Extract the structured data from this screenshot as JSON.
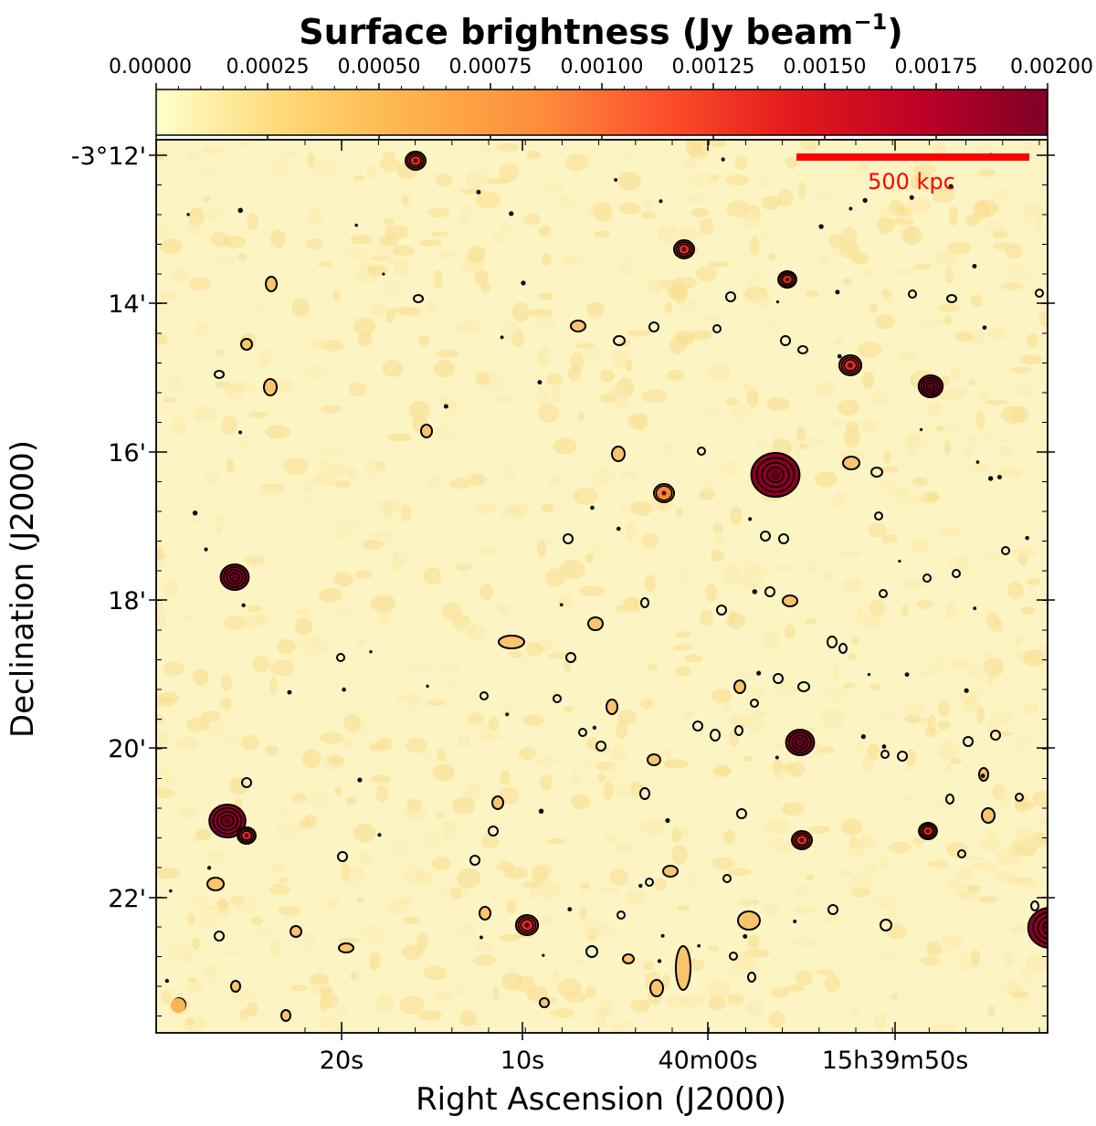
{
  "figure": {
    "colorbar_title_main": "Surface brightness (Jy beam",
    "colorbar_title_exp": "−1",
    "colorbar_title_close": ")",
    "colorbar_ticks": [
      "0.00000",
      "0.00025",
      "0.00050",
      "0.00075",
      "0.00100",
      "0.00125",
      "0.00150",
      "0.00175",
      "0.00200"
    ],
    "colormap_stops": [
      "#ffffcc",
      "#fed976",
      "#feb24c",
      "#fd8d3c",
      "#fc4e2a",
      "#e31a1c",
      "#bd0026",
      "#800026"
    ],
    "scalebar_label": "500 kpc",
    "scalebar_color": "#ff0000",
    "contour_color": "#000000",
    "background_color": "#fdf4c4",
    "dec_ticks": [
      "-3°12'",
      "14'",
      "16'",
      "18'",
      "20'",
      "22'"
    ],
    "ra_ticks": [
      "20s",
      "10s",
      "40m00s",
      "15h39m50s"
    ],
    "ylabel": "Declination (J2000)",
    "xlabel": "Right Ascension (J2000)"
  }
}
